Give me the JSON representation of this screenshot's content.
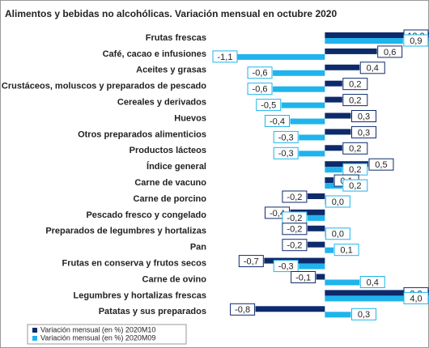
{
  "chart_data": {
    "type": "hbar",
    "title": "Alimentos y bebidas no alcohólicas. Variación mensual en octubre 2020",
    "categories": [
      "Frutas frescas",
      "Café, cacao e infusiones",
      "Aceites y grasas",
      "Crustáceos, moluscos y preparados de pescado",
      "Cereales y derivados",
      "Huevos",
      "Otros preparados alimenticios",
      "Productos lácteos",
      "Índice general",
      "Carne de vacuno",
      "Carne de porcino",
      "Pescado fresco y congelado",
      "Preparados de legumbres y hortalizas",
      "Pan",
      "Frutas en conserva y frutos secos",
      "Carne de ovino",
      "Legumbres y hortalizas frescas",
      "Patatas y sus preparados"
    ],
    "series": [
      {
        "name": "Variación mensual (en %) 2020M10",
        "color": "#0d2a6b",
        "values": [
          13.9,
          0.6,
          0.4,
          0.2,
          0.2,
          0.3,
          0.3,
          0.2,
          0.5,
          0.1,
          -0.2,
          -0.4,
          -0.2,
          -0.2,
          -0.7,
          -0.1,
          3.2,
          -0.8
        ],
        "value_labels": [
          "13,9",
          "0,6",
          "0,4",
          "0,2",
          "0,2",
          "0,3",
          "0,3",
          "0,2",
          "0,5",
          "0,1",
          "-0,2",
          "-0,4",
          "-0,2",
          "-0,2",
          "-0,7",
          "-0,1",
          "3,2",
          "-0,8"
        ]
      },
      {
        "name": "Variación mensual (en %) 2020M09",
        "color": "#1fb4ec",
        "values": [
          0.9,
          -1.1,
          -0.6,
          -0.6,
          -0.5,
          -0.4,
          -0.3,
          -0.3,
          0.2,
          0.2,
          0.0,
          -0.2,
          0.0,
          0.1,
          -0.3,
          0.4,
          4.0,
          0.3
        ],
        "value_labels": [
          "0,9",
          "-1,1",
          "-0,6",
          "-0,6",
          "-0,5",
          "-0,4",
          "-0,3",
          "-0,3",
          "0,2",
          "0,2",
          "0,0",
          "-0,2",
          "0,0",
          "0,1",
          "-0,3",
          "0,4",
          "4,0",
          "0,3"
        ]
      }
    ],
    "xlim": [
      -1.3,
      1.2
    ]
  }
}
